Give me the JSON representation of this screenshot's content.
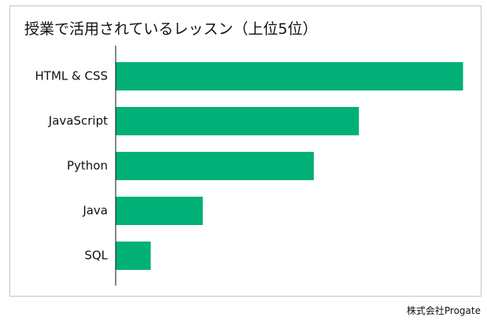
{
  "chart_data": {
    "type": "bar",
    "orientation": "horizontal",
    "title": "授業で活用されているレッスン（上位5位）",
    "categories": [
      "HTML & CSS",
      "JavaScript",
      "Python",
      "Java",
      "SQL"
    ],
    "values": [
      100,
      70,
      57,
      25,
      10
    ],
    "xlabel": "",
    "ylabel": "",
    "xlim": [
      0,
      100
    ],
    "grid": false,
    "legend": "none",
    "bar_color": "#00b077"
  },
  "footer": {
    "credit": "株式会社Progate"
  }
}
